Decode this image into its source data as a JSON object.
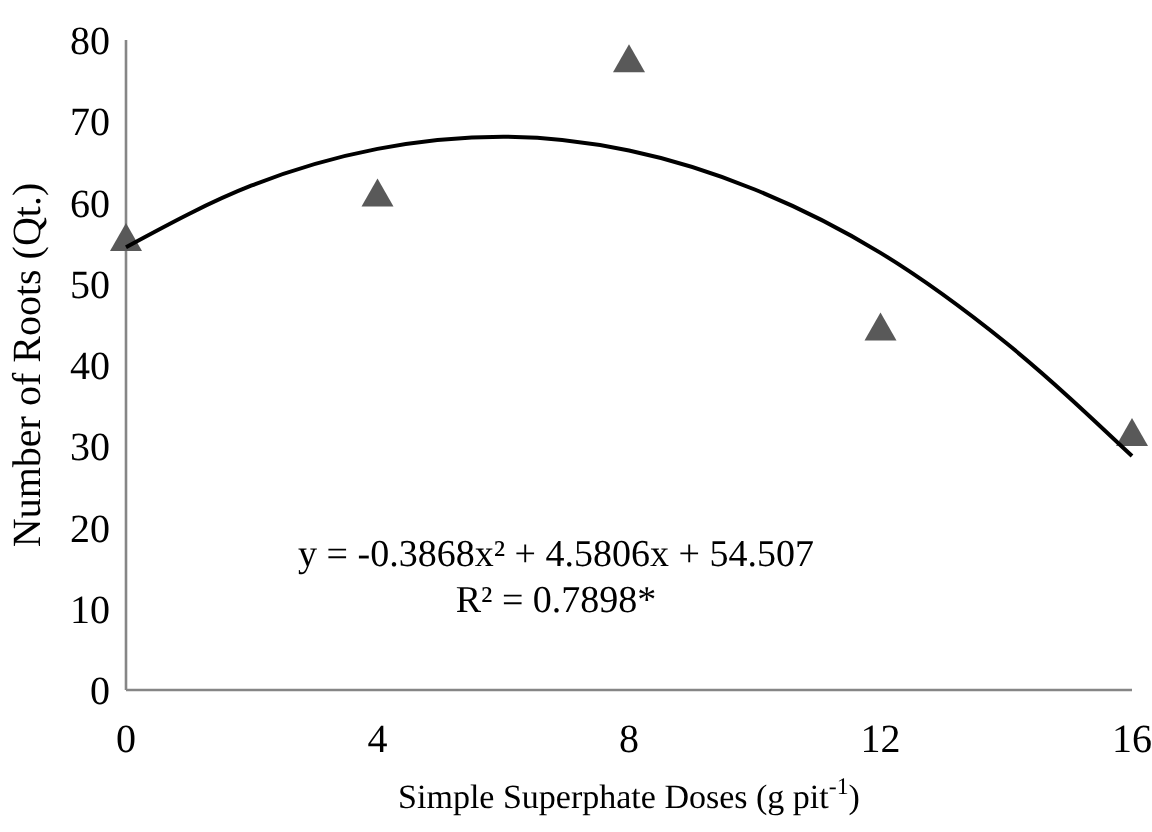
{
  "chart_data": {
    "type": "scatter",
    "xlabel": "Simple Superphate Doses (g pit$^{-1}$)",
    "ylabel": "Number of Roots  (Qt.)",
    "xlim": [
      0,
      16
    ],
    "xticks": [
      0,
      4,
      8,
      12,
      16
    ],
    "ylim": [
      0,
      80
    ],
    "yticks": [
      0,
      10,
      20,
      30,
      40,
      50,
      60,
      70,
      80
    ],
    "grid": false,
    "marker": "triangle",
    "series": [
      {
        "color": "#595959",
        "x": [
          0,
          4,
          8,
          12,
          16
        ],
        "values": [
          55.5,
          61,
          77.5,
          44.5,
          31.5
        ]
      },
      {
        "type": "line",
        "color": "#000000",
        "marker": "none",
        "line_style": "solid",
        "x": [
          0,
          2,
          4,
          6,
          8,
          10,
          12,
          14,
          16
        ],
        "values": [
          54.5,
          62.1,
          66.6,
          68.1,
          66.4,
          61.6,
          53.8,
          42.7,
          28.8
        ]
      }
    ],
    "annotations": [
      "y = -0.3868x² + 4.5806x + 54.507",
      "R² = 0.7898*"
    ]
  }
}
